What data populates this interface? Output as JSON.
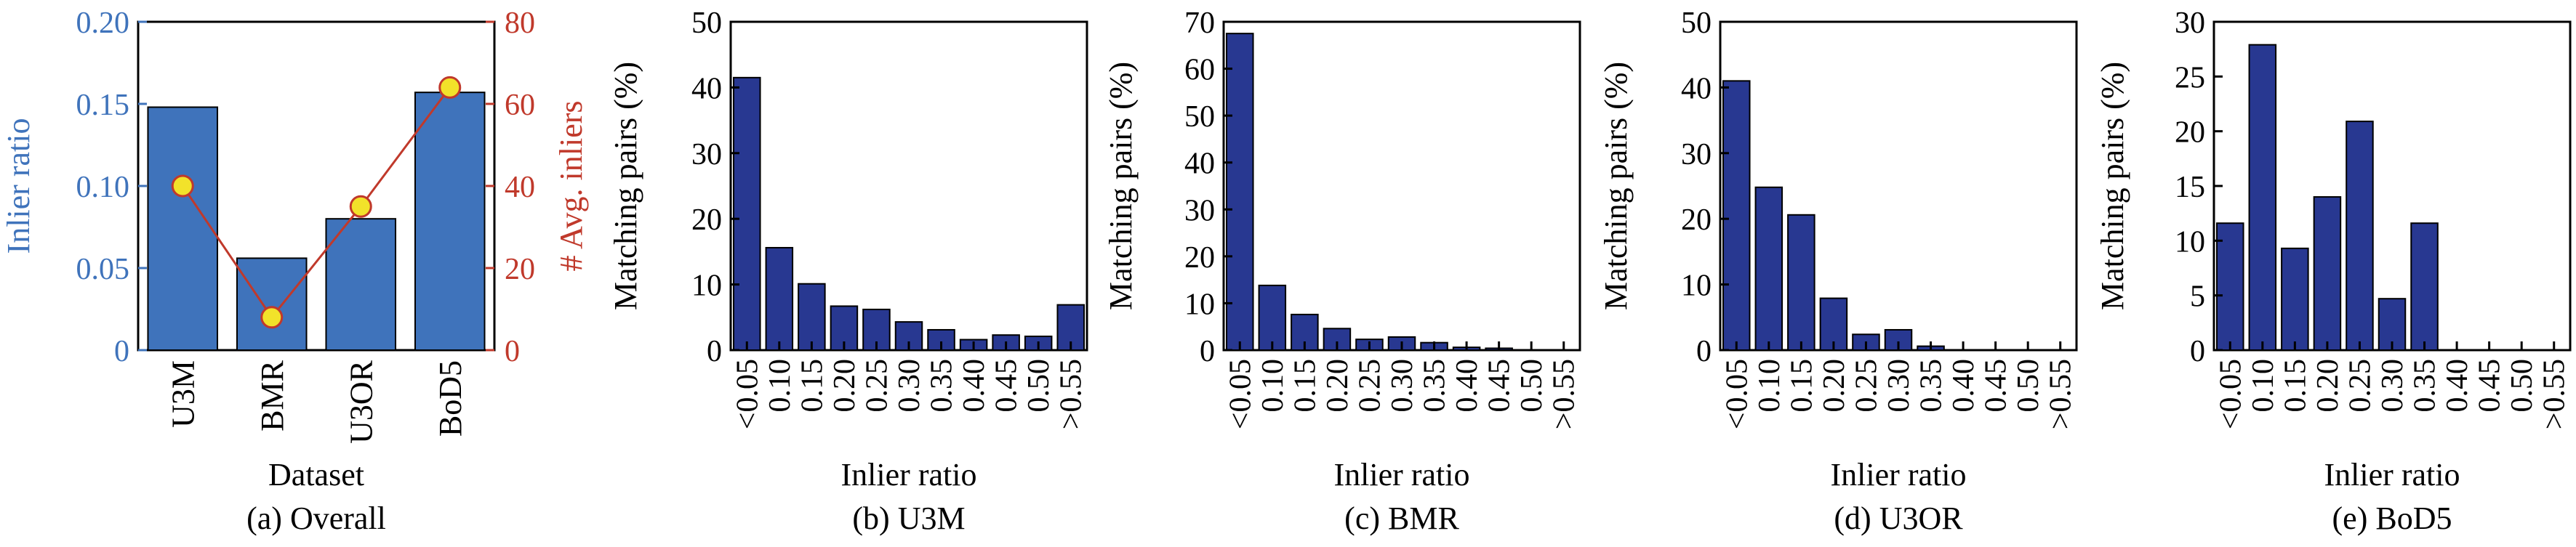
{
  "chart_data": [
    {
      "type": "bar",
      "caption": "(a) Overall",
      "xlabel": "Dataset",
      "ylabel": "Inlier ratio",
      "y2label": "# Avg. inliers",
      "categories": [
        "U3M",
        "BMR",
        "U3OR",
        "BoD5"
      ],
      "ylim": [
        0,
        0.2
      ],
      "yticks": [
        "0",
        "0.05",
        "0.10",
        "0.15",
        "0.20"
      ],
      "y2lim": [
        0,
        80
      ],
      "y2ticks": [
        "0",
        "20",
        "40",
        "60",
        "80"
      ],
      "series": [
        {
          "type": "bar",
          "axis": "left",
          "values": [
            0.148,
            0.056,
            0.08,
            0.157
          ]
        },
        {
          "type": "line",
          "axis": "right",
          "values": [
            40,
            8,
            35,
            64
          ]
        }
      ]
    },
    {
      "type": "bar",
      "caption": "(b) U3M",
      "xlabel": "Inlier ratio",
      "ylabel": "Matching pairs (%)",
      "categories": [
        "<0.05",
        "0.10",
        "0.15",
        "0.20",
        "0.25",
        "0.30",
        "0.35",
        "0.40",
        "0.45",
        "0.50",
        ">0.55"
      ],
      "ylim": [
        0,
        50
      ],
      "yticks": [
        "0",
        "10",
        "20",
        "30",
        "40",
        "50"
      ],
      "values": [
        41.5,
        15.6,
        10.1,
        6.7,
        6.2,
        4.3,
        3.1,
        1.6,
        2.3,
        2.1,
        6.9
      ]
    },
    {
      "type": "bar",
      "caption": "(c) BMR",
      "xlabel": "Inlier ratio",
      "ylabel": "Matching pairs (%)",
      "categories": [
        "<0.05",
        "0.10",
        "0.15",
        "0.20",
        "0.25",
        "0.30",
        "0.35",
        "0.40",
        "0.45",
        "0.50",
        ">0.55"
      ],
      "ylim": [
        0,
        70
      ],
      "yticks": [
        "0",
        "10",
        "20",
        "30",
        "40",
        "50",
        "60",
        "70"
      ],
      "values": [
        67.5,
        13.8,
        7.6,
        4.6,
        2.3,
        2.8,
        1.6,
        0.6,
        0.4,
        0,
        0
      ]
    },
    {
      "type": "bar",
      "caption": "(d) U3OR",
      "xlabel": "Inlier ratio",
      "ylabel": "Matching pairs (%)",
      "categories": [
        "<0.05",
        "0.10",
        "0.15",
        "0.20",
        "0.25",
        "0.30",
        "0.35",
        "0.40",
        "0.45",
        "0.50",
        ">0.55"
      ],
      "ylim": [
        0,
        50
      ],
      "yticks": [
        "0",
        "10",
        "20",
        "30",
        "40",
        "50"
      ],
      "values": [
        41.0,
        24.8,
        20.6,
        7.9,
        2.4,
        3.1,
        0.6,
        0,
        0,
        0,
        0
      ]
    },
    {
      "type": "bar",
      "caption": "(e) BoD5",
      "xlabel": "Inlier ratio",
      "ylabel": "Matching pairs (%)",
      "categories": [
        "<0.05",
        "0.10",
        "0.15",
        "0.20",
        "0.25",
        "0.30",
        "0.35",
        "0.40",
        "0.45",
        "0.50",
        ">0.55"
      ],
      "ylim": [
        0,
        30
      ],
      "yticks": [
        "0",
        "5",
        "10",
        "15",
        "20",
        "25",
        "30"
      ],
      "values": [
        11.6,
        27.9,
        9.3,
        14.0,
        20.9,
        4.7,
        11.6,
        0,
        0,
        0,
        0
      ]
    }
  ],
  "colors": {
    "overall_bar": "#3f73bb",
    "histogram_bar": "#283891",
    "left_axis": "#3f73bb",
    "right_axis": "#c0392b",
    "line": "#c0392b",
    "marker_fill": "#f2e22a",
    "marker_edge": "#c0392b"
  }
}
